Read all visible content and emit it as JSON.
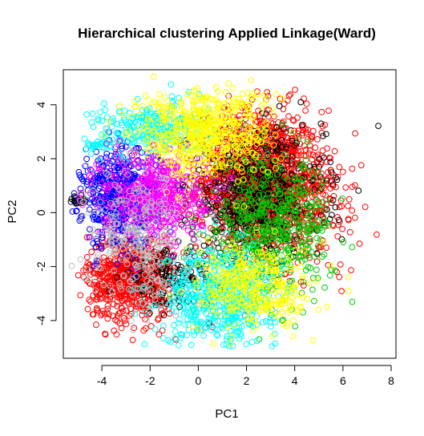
{
  "chart_data": {
    "type": "scatter",
    "title": "Hierarchical clustering Applied Linkage(Ward)",
    "xlabel": "PC1",
    "ylabel": "PC2",
    "xlim": [
      -5.6,
      8.2
    ],
    "ylim": [
      -5.4,
      5.3
    ],
    "x_ticks": [
      "-4",
      "-2",
      "0",
      "2",
      "4",
      "6",
      "8"
    ],
    "y_ticks": [
      "-4",
      "-2",
      "0",
      "2",
      "4"
    ],
    "grid": false,
    "legend": "none",
    "marker": "open-circle",
    "series": [
      {
        "color": "#FF0000",
        "clusters": [
          {
            "cx": 2.6,
            "cy": 1.2,
            "sx": 1.3,
            "sy": 1.3,
            "n": 1400
          },
          {
            "cx": -2.8,
            "cy": -2.4,
            "sx": 0.9,
            "sy": 0.8,
            "n": 700
          },
          {
            "cx": 4.8,
            "cy": 0.2,
            "sx": 1.0,
            "sy": 1.2,
            "n": 150
          }
        ]
      },
      {
        "color": "#000000",
        "clusters": [
          {
            "cx": 2.4,
            "cy": 0.6,
            "sx": 1.4,
            "sy": 1.2,
            "n": 550
          },
          {
            "cx": -1.2,
            "cy": -2.4,
            "sx": 1.0,
            "sy": 0.5,
            "n": 120
          },
          {
            "cx": -5.0,
            "cy": 0.45,
            "sx": 0.2,
            "sy": 0.08,
            "n": 20
          }
        ]
      },
      {
        "color": "#00CD00",
        "clusters": [
          {
            "cx": 3.0,
            "cy": -0.6,
            "sx": 1.3,
            "sy": 1.3,
            "n": 500
          }
        ]
      },
      {
        "color": "#0000FF",
        "clusters": [
          {
            "cx": -3.2,
            "cy": 0.5,
            "sx": 0.8,
            "sy": 0.9,
            "n": 550
          }
        ]
      },
      {
        "color": "#00FFFF",
        "clusters": [
          {
            "cx": 0.9,
            "cy": -3.1,
            "sx": 1.2,
            "sy": 0.9,
            "n": 550
          },
          {
            "cx": -2.0,
            "cy": 3.1,
            "sx": 1.2,
            "sy": 0.5,
            "n": 250
          },
          {
            "cx": -4.1,
            "cy": 2.5,
            "sx": 0.25,
            "sy": 0.12,
            "n": 25
          }
        ]
      },
      {
        "color": "#FF00FF",
        "clusters": [
          {
            "cx": -1.8,
            "cy": 0.7,
            "sx": 1.1,
            "sy": 0.8,
            "n": 500
          }
        ]
      },
      {
        "color": "#FFFF00",
        "clusters": [
          {
            "cx": 0.2,
            "cy": 3.0,
            "sx": 1.4,
            "sy": 0.8,
            "n": 600
          },
          {
            "cx": 2.4,
            "cy": -2.8,
            "sx": 1.2,
            "sy": 0.8,
            "n": 350
          }
        ]
      },
      {
        "color": "#BEBEBE",
        "clusters": [
          {
            "cx": -2.6,
            "cy": -0.9,
            "sx": 1.0,
            "sy": 1.2,
            "n": 280
          }
        ]
      }
    ]
  }
}
